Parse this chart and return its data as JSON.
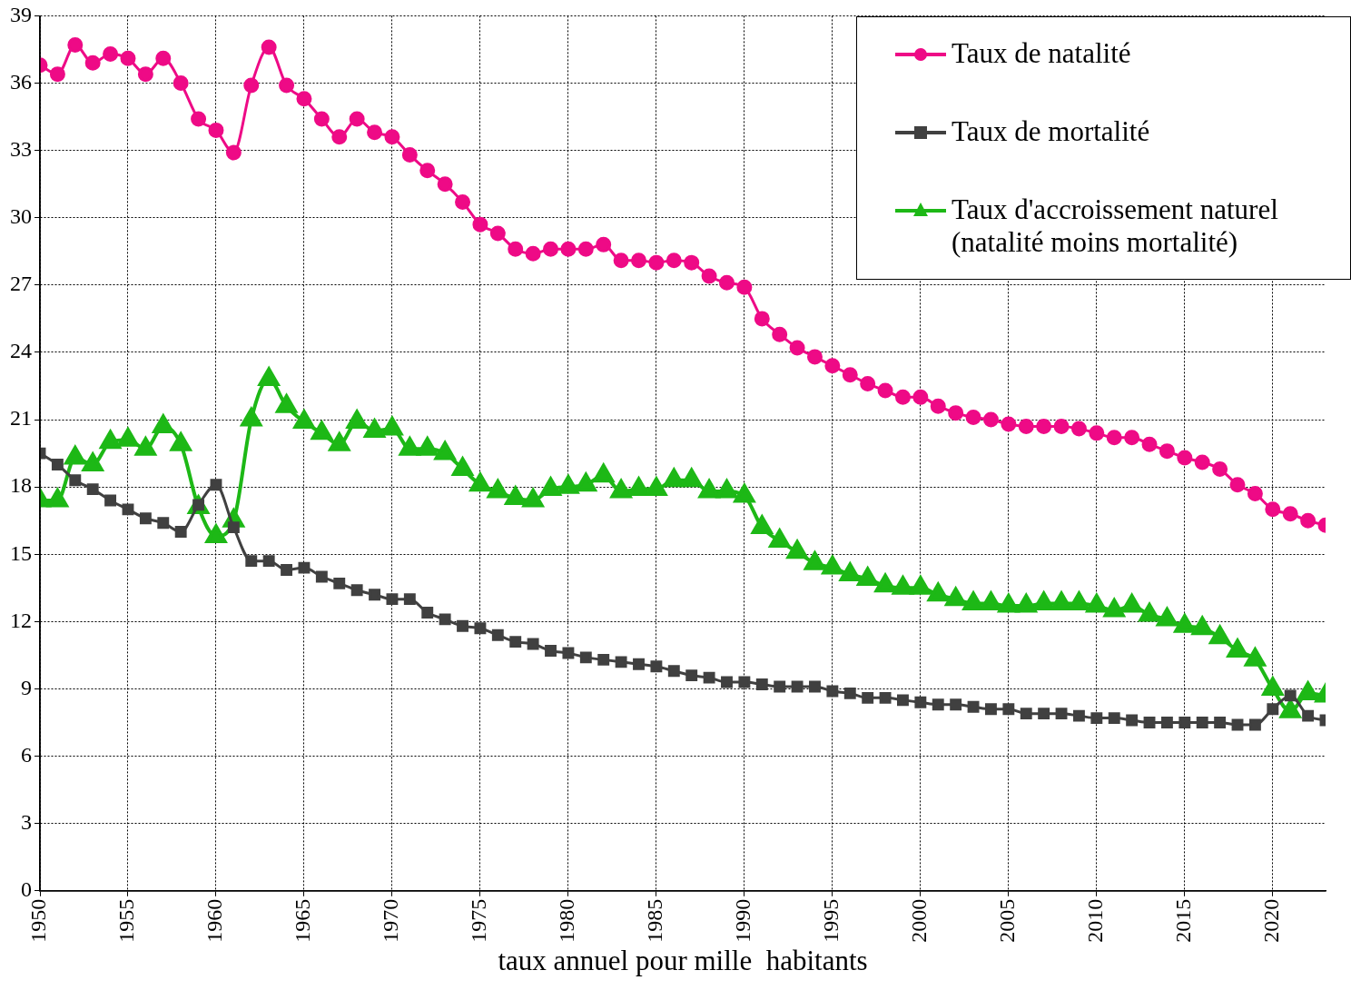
{
  "chart_data": {
    "type": "line",
    "xlabel": "taux annuel pour mille  habitants",
    "x": [
      1950,
      1951,
      1952,
      1953,
      1954,
      1955,
      1956,
      1957,
      1958,
      1959,
      1960,
      1961,
      1962,
      1963,
      1964,
      1965,
      1966,
      1967,
      1968,
      1969,
      1970,
      1971,
      1972,
      1973,
      1974,
      1975,
      1976,
      1977,
      1978,
      1979,
      1980,
      1981,
      1982,
      1983,
      1984,
      1985,
      1986,
      1987,
      1988,
      1989,
      1990,
      1991,
      1992,
      1993,
      1994,
      1995,
      1996,
      1997,
      1998,
      1999,
      2000,
      2001,
      2002,
      2003,
      2004,
      2005,
      2006,
      2007,
      2008,
      2009,
      2010,
      2011,
      2012,
      2013,
      2014,
      2015,
      2016,
      2017,
      2018,
      2019,
      2020,
      2021,
      2022,
      2023
    ],
    "series": [
      {
        "name": "Taux de natalité",
        "color": "#ee0a86",
        "marker": "circle",
        "values": [
          36.8,
          36.4,
          37.7,
          36.9,
          37.3,
          37.1,
          36.4,
          37.1,
          36.0,
          34.4,
          33.9,
          32.9,
          35.9,
          37.6,
          35.9,
          35.3,
          34.4,
          33.6,
          34.4,
          33.8,
          33.6,
          32.8,
          32.1,
          31.5,
          30.7,
          29.7,
          29.3,
          28.6,
          28.4,
          28.6,
          28.6,
          28.6,
          28.8,
          28.1,
          28.1,
          28.0,
          28.1,
          28.0,
          27.4,
          27.1,
          26.9,
          25.5,
          24.8,
          24.2,
          23.8,
          23.4,
          23.0,
          22.6,
          22.3,
          22.0,
          22.0,
          21.6,
          21.3,
          21.1,
          21.0,
          20.8,
          20.7,
          20.7,
          20.7,
          20.6,
          20.4,
          20.2,
          20.2,
          19.9,
          19.6,
          19.3,
          19.1,
          18.8,
          18.1,
          17.7,
          17.0,
          16.8,
          16.5,
          16.3
        ]
      },
      {
        "name": "Taux de mortalité",
        "color": "#404040",
        "marker": "square",
        "values": [
          19.5,
          19.0,
          18.3,
          17.9,
          17.4,
          17.0,
          16.6,
          16.4,
          16.0,
          17.2,
          18.1,
          16.2,
          14.7,
          14.7,
          14.3,
          14.4,
          14.0,
          13.7,
          13.4,
          13.2,
          13.0,
          13.0,
          12.4,
          12.1,
          11.8,
          11.7,
          11.4,
          11.1,
          11.0,
          10.7,
          10.6,
          10.4,
          10.3,
          10.2,
          10.1,
          10.0,
          9.8,
          9.6,
          9.5,
          9.3,
          9.3,
          9.2,
          9.1,
          9.1,
          9.1,
          8.9,
          8.8,
          8.6,
          8.6,
          8.5,
          8.4,
          8.3,
          8.3,
          8.2,
          8.1,
          8.1,
          7.9,
          7.9,
          7.9,
          7.8,
          7.7,
          7.7,
          7.6,
          7.5,
          7.5,
          7.5,
          7.5,
          7.5,
          7.4,
          7.4,
          8.1,
          8.7,
          7.8,
          7.6
        ]
      },
      {
        "name": "Taux d'accroissement naturel (natalité moins mortalité)",
        "color": "#1db816",
        "marker": "triangle",
        "values": [
          17.4,
          17.4,
          19.3,
          19.0,
          20.0,
          20.1,
          19.7,
          20.7,
          19.9,
          17.1,
          15.8,
          16.5,
          21.0,
          22.8,
          21.6,
          20.9,
          20.4,
          19.9,
          20.9,
          20.5,
          20.6,
          19.7,
          19.7,
          19.5,
          18.8,
          18.1,
          17.8,
          17.5,
          17.4,
          17.9,
          18.0,
          18.1,
          18.5,
          17.8,
          17.9,
          17.9,
          18.3,
          18.3,
          17.8,
          17.8,
          17.6,
          16.2,
          15.6,
          15.1,
          14.6,
          14.4,
          14.1,
          13.9,
          13.6,
          13.5,
          13.5,
          13.2,
          13.0,
          12.8,
          12.8,
          12.7,
          12.7,
          12.8,
          12.8,
          12.8,
          12.7,
          12.5,
          12.7,
          12.3,
          12.1,
          11.8,
          11.7,
          11.3,
          10.7,
          10.3,
          9.0,
          8.0,
          8.8,
          8.7
        ]
      }
    ],
    "xlim": [
      1950,
      2023
    ],
    "xticks": [
      1950,
      1955,
      1960,
      1965,
      1970,
      1975,
      1980,
      1985,
      1990,
      1995,
      2000,
      2005,
      2010,
      2015,
      2020
    ],
    "ylim": [
      0,
      39
    ],
    "yticks": [
      0,
      3,
      6,
      9,
      12,
      15,
      18,
      21,
      24,
      27,
      30,
      33,
      36,
      39
    ],
    "grid": true,
    "legend": "top right"
  }
}
